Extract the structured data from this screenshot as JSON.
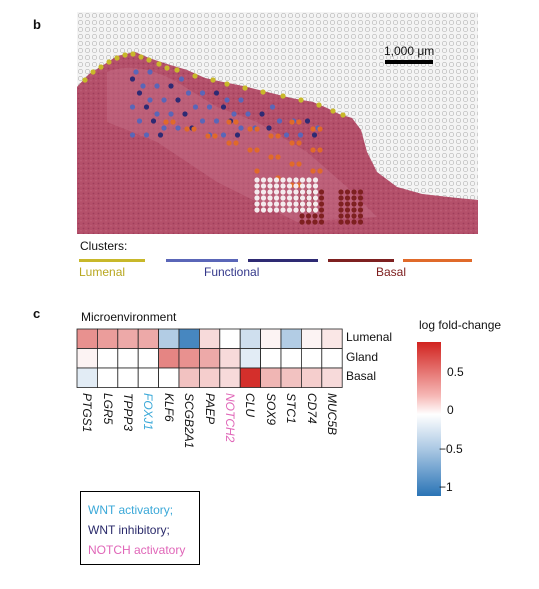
{
  "panels": {
    "b": "b",
    "c": "c"
  },
  "scale_bar": {
    "label": "1,000 μm"
  },
  "clusters": {
    "title": "Clusters:",
    "items": [
      {
        "label": "Lumenal",
        "color": "#c8b82a",
        "label_color": "#b8a720"
      },
      {
        "label": "Functional",
        "color": "#5a66b8",
        "label_color": "#33378a"
      },
      {
        "label": "",
        "color": "#2e2a73"
      },
      {
        "label": "Basal",
        "color": "#7e2020",
        "label_color": "#7e2020"
      },
      {
        "label": "",
        "color": "#e06a2a"
      }
    ]
  },
  "heatmap": {
    "title": "Microenvironment",
    "rows": [
      "Lumenal",
      "Gland",
      "Basal"
    ],
    "genes": [
      {
        "name": "PTGS1",
        "color": "#111111"
      },
      {
        "name": "LGR5",
        "color": "#111111"
      },
      {
        "name": "TPPP3",
        "color": "#111111"
      },
      {
        "name": "FOXJ1",
        "color": "#3aa8d8"
      },
      {
        "name": "KLF6",
        "color": "#111111"
      },
      {
        "name": "SCGB2A1",
        "color": "#111111"
      },
      {
        "name": "PAEP",
        "color": "#111111"
      },
      {
        "name": "NOTCH2",
        "color": "#e066b8"
      },
      {
        "name": "CLU",
        "color": "#111111"
      },
      {
        "name": "SOX9",
        "color": "#111111"
      },
      {
        "name": "STC1",
        "color": "#111111"
      },
      {
        "name": "CD74",
        "color": "#111111"
      },
      {
        "name": "MUC5B",
        "color": "#111111"
      }
    ],
    "values": [
      [
        0.45,
        0.4,
        0.35,
        0.35,
        -0.4,
        -0.95,
        0.15,
        0.0,
        -0.25,
        0.05,
        -0.4,
        0.05,
        0.1
      ],
      [
        0.05,
        0.0,
        0.0,
        0.0,
        0.5,
        0.45,
        0.35,
        0.15,
        -0.15,
        0.0,
        0.0,
        0.0,
        0.0
      ],
      [
        -0.15,
        0.0,
        0.0,
        0.0,
        0.0,
        0.25,
        0.2,
        0.15,
        0.85,
        0.3,
        0.25,
        0.2,
        0.15
      ]
    ],
    "colorbar": {
      "title": "log fold-change",
      "ticks": [
        "0.5",
        "0",
        "−0.5",
        "−1"
      ],
      "tick_values": [
        0.5,
        0,
        -0.5,
        -1
      ],
      "min": -1.1,
      "max": 0.9
    }
  },
  "legend": {
    "items": [
      {
        "label": "WNT activatory;",
        "color": "#3aa8d8"
      },
      {
        "label": "WNT inhibitory;",
        "color": "#2a2a6a"
      },
      {
        "label": "NOTCH activatory",
        "color": "#e066b8"
      }
    ]
  }
}
